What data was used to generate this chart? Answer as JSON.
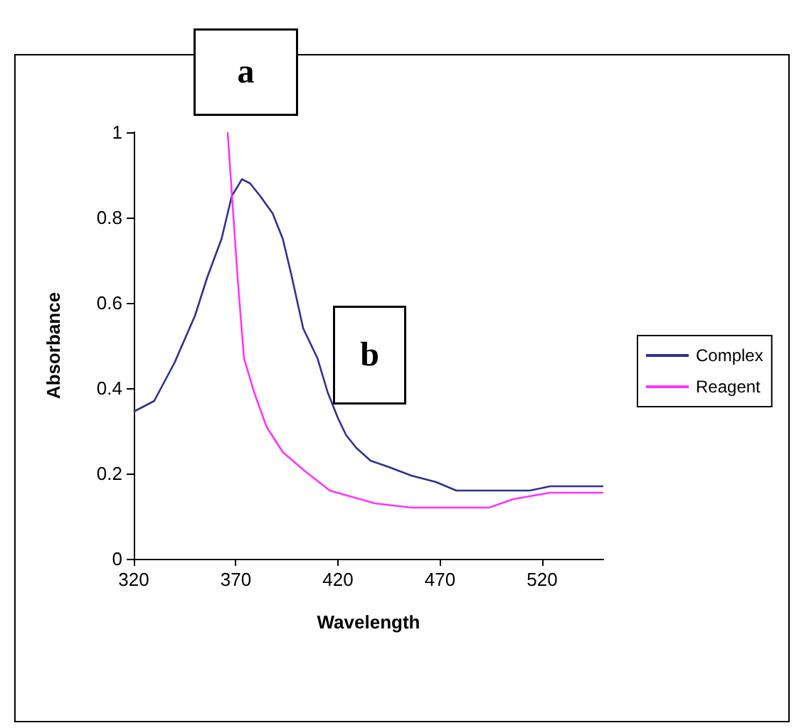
{
  "chart_data": {
    "type": "line",
    "xlabel": "Wavelength",
    "ylabel": "Absorbance",
    "xlim": [
      320,
      550
    ],
    "xticks": [
      320,
      370,
      420,
      470,
      520
    ],
    "ylim": [
      0,
      1
    ],
    "yticks": [
      0,
      0.2,
      0.4,
      0.6,
      0.8,
      1
    ],
    "grid": false,
    "legend": "right",
    "marker": "none",
    "line_style": "solid",
    "annotations": [
      "a",
      "b"
    ],
    "series": [
      {
        "name": "Complex",
        "color": "#2e3192",
        "x": [
          320,
          330,
          340,
          350,
          356,
          363,
          368,
          373,
          377,
          382,
          388,
          393,
          397,
          403,
          410,
          415,
          420,
          424,
          429,
          436,
          445,
          456,
          468,
          478,
          490,
          514,
          524,
          550
        ],
        "values": [
          0.345,
          0.37,
          0.46,
          0.57,
          0.66,
          0.75,
          0.85,
          0.89,
          0.88,
          0.85,
          0.81,
          0.75,
          0.67,
          0.54,
          0.47,
          0.39,
          0.33,
          0.29,
          0.26,
          0.23,
          0.215,
          0.195,
          0.18,
          0.16,
          0.16,
          0.16,
          0.17,
          0.17
        ]
      },
      {
        "name": "Reagent",
        "color": "#ff33ff",
        "x": [
          366,
          369,
          371,
          374,
          379,
          385,
          393,
          404,
          416,
          427,
          438,
          456,
          494,
          506,
          524,
          550
        ],
        "values": [
          1,
          0.79,
          0.65,
          0.47,
          0.39,
          0.31,
          0.25,
          0.205,
          0.16,
          0.145,
          0.13,
          0.12,
          0.12,
          0.14,
          0.155,
          0.155
        ]
      }
    ]
  }
}
